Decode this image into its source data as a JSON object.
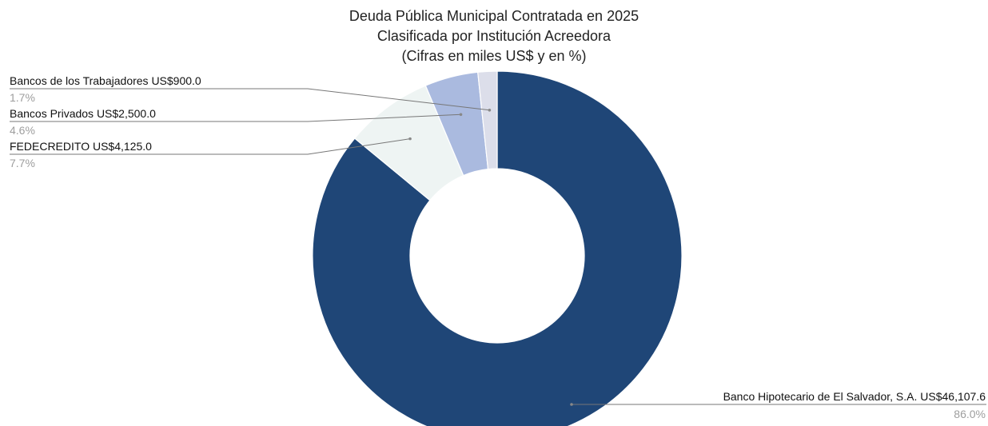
{
  "chart_data": {
    "type": "pie",
    "donut": true,
    "title": [
      "Deuda Pública Municipal Contratada en 2025",
      "Clasificada por Institución Acreedora",
      "(Cifras en miles US$ y en %)"
    ],
    "unit": "miles US$",
    "slices": [
      {
        "label": "Banco Hipotecario de El Salvador, S.A.",
        "value_text": "US$46,107.6",
        "value": 46107.6,
        "percent_text": "86.0%",
        "color": "#1f4677"
      },
      {
        "label": "FEDECREDITO",
        "value_text": "US$4,125.0",
        "value": 4125.0,
        "percent_text": "7.7%",
        "color": "#eef4f3"
      },
      {
        "label": "Bancos Privados",
        "value_text": "US$2,500.0",
        "value": 2500.0,
        "percent_text": "4.6%",
        "color": "#aabadf"
      },
      {
        "label": "Bancos de los Trabajadores",
        "value_text": "US$900.0",
        "value": 900.0,
        "percent_text": "1.7%",
        "color": "#dcdeea"
      }
    ],
    "label_color": "#111111",
    "percent_color": "#9e9e9e",
    "leader_color": "#777777",
    "legend": "none"
  }
}
